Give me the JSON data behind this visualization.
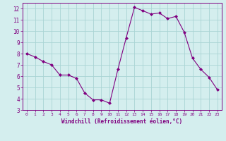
{
  "x": [
    0,
    1,
    2,
    3,
    4,
    5,
    6,
    7,
    8,
    9,
    10,
    11,
    12,
    13,
    14,
    15,
    16,
    17,
    18,
    19,
    20,
    21,
    22,
    23
  ],
  "y": [
    8.0,
    7.7,
    7.3,
    7.0,
    6.1,
    6.1,
    5.8,
    4.5,
    3.9,
    3.9,
    3.6,
    6.6,
    9.4,
    12.1,
    11.8,
    11.5,
    11.6,
    11.1,
    11.3,
    9.9,
    7.6,
    6.6,
    5.9,
    4.8
  ],
  "line_color": "#800080",
  "marker": "D",
  "marker_size": 2,
  "bg_color": "#d4eeee",
  "grid_color": "#aad4d4",
  "xlabel": "Windchill (Refroidissement éolien,°C)",
  "xlabel_color": "#800080",
  "tick_color": "#800080",
  "ylabel_ticks": [
    3,
    4,
    5,
    6,
    7,
    8,
    9,
    10,
    11,
    12
  ],
  "xlim": [
    -0.5,
    23.5
  ],
  "ylim": [
    3,
    12.5
  ],
  "xtick_labels": [
    "0",
    "1",
    "2",
    "3",
    "4",
    "5",
    "6",
    "7",
    "8",
    "9",
    "10",
    "11",
    "12",
    "13",
    "14",
    "15",
    "16",
    "17",
    "18",
    "19",
    "20",
    "21",
    "22",
    "23"
  ]
}
